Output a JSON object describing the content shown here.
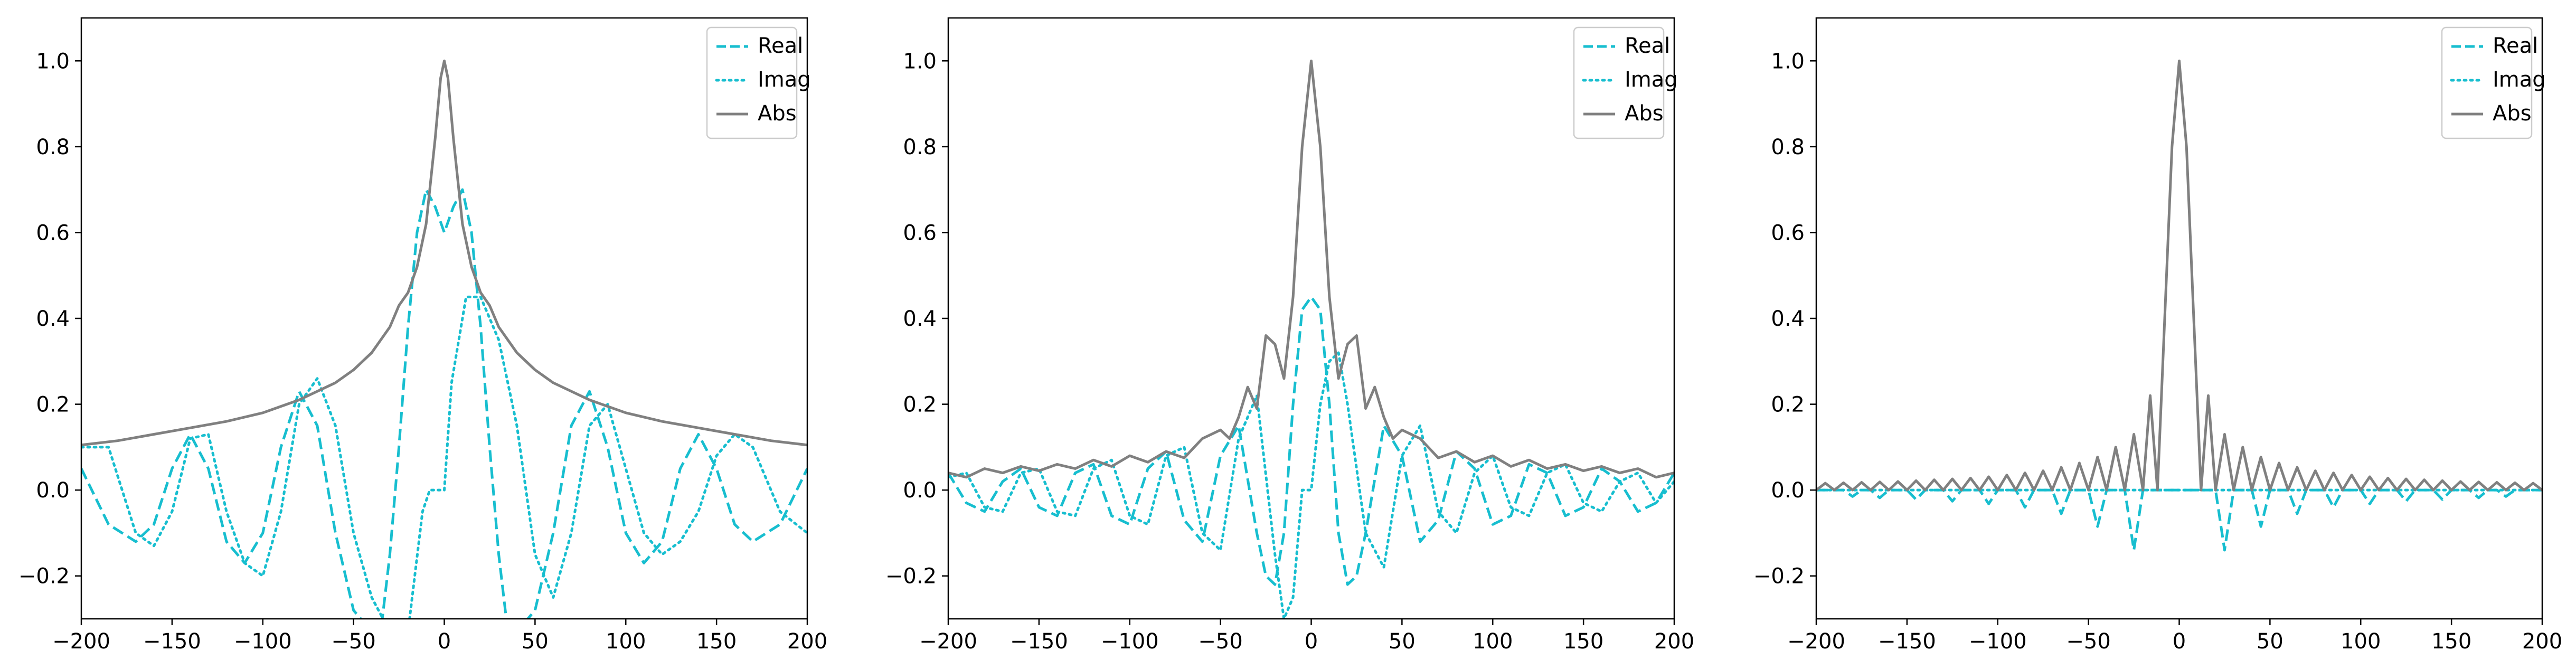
{
  "colors": {
    "real": "#17becf",
    "imag": "#17becf",
    "abs": "#808080",
    "axes": "#000000",
    "legend_border": "#cccccc",
    "background": "#ffffff"
  },
  "chart_data": [
    {
      "type": "line",
      "title": "",
      "xlabel": "",
      "ylabel": "",
      "xlim": [
        -200,
        200
      ],
      "ylim": [
        -0.3,
        1.1
      ],
      "xticks": [
        -200,
        -150,
        -100,
        -50,
        0,
        50,
        100,
        150,
        200
      ],
      "xtick_labels": [
        "−200",
        "−150",
        "−100",
        "−50",
        "0",
        "50",
        "100",
        "150",
        "200"
      ],
      "yticks": [
        -0.2,
        0.0,
        0.2,
        0.4,
        0.6,
        0.8,
        1.0
      ],
      "ytick_labels": [
        "−0.2",
        "0.0",
        "0.2",
        "0.4",
        "0.6",
        "0.8",
        "1.0"
      ],
      "grid": false,
      "legend_position": "top-right",
      "series": [
        {
          "name": "Real",
          "style": "dashed",
          "x": [
            -200,
            -185,
            -170,
            -160,
            -150,
            -140,
            -130,
            -120,
            -110,
            -100,
            -90,
            -80,
            -70,
            -60,
            -50,
            -40,
            -35,
            -30,
            -25,
            -20,
            -15,
            -10,
            -5,
            0,
            5,
            10,
            15,
            20,
            25,
            30,
            35,
            40,
            50,
            60,
            70,
            80,
            90,
            100,
            110,
            120,
            130,
            140,
            150,
            160,
            170,
            185,
            200
          ],
          "y": [
            0.05,
            -0.08,
            -0.12,
            -0.08,
            0.05,
            0.13,
            0.05,
            -0.12,
            -0.17,
            -0.1,
            0.1,
            0.23,
            0.15,
            -0.1,
            -0.28,
            -0.33,
            -0.33,
            -0.15,
            0.1,
            0.38,
            0.6,
            0.7,
            0.66,
            0.6,
            0.66,
            0.7,
            0.6,
            0.38,
            0.1,
            -0.15,
            -0.33,
            -0.33,
            -0.28,
            -0.1,
            0.15,
            0.23,
            0.1,
            -0.1,
            -0.17,
            -0.12,
            0.05,
            0.13,
            0.05,
            -0.08,
            -0.12,
            -0.08,
            0.05
          ]
        },
        {
          "name": "Imag",
          "style": "dotted",
          "x": [
            -200,
            -185,
            -170,
            -160,
            -150,
            -140,
            -130,
            -120,
            -110,
            -100,
            -90,
            -80,
            -70,
            -60,
            -50,
            -40,
            -30,
            -20,
            -12,
            -8,
            -4,
            0,
            4,
            8,
            12,
            20,
            30,
            40,
            50,
            60,
            70,
            80,
            90,
            100,
            110,
            120,
            130,
            140,
            150,
            160,
            170,
            185,
            200
          ],
          "y": [
            0.1,
            0.1,
            -0.1,
            -0.13,
            -0.05,
            0.12,
            0.13,
            -0.05,
            -0.17,
            -0.2,
            -0.05,
            0.2,
            0.26,
            0.15,
            -0.1,
            -0.25,
            -0.33,
            -0.33,
            -0.05,
            0.0,
            0.0,
            0.0,
            0.25,
            0.35,
            0.45,
            0.45,
            0.35,
            0.15,
            -0.15,
            -0.25,
            -0.1,
            0.15,
            0.2,
            0.05,
            -0.1,
            -0.15,
            -0.12,
            -0.05,
            0.08,
            0.13,
            0.1,
            -0.05,
            -0.1
          ]
        },
        {
          "name": "Abs",
          "style": "solid",
          "x": [
            -200,
            -180,
            -160,
            -140,
            -120,
            -100,
            -80,
            -60,
            -50,
            -40,
            -30,
            -25,
            -20,
            -15,
            -10,
            -5,
            -2,
            0,
            2,
            5,
            10,
            15,
            20,
            25,
            30,
            40,
            50,
            60,
            80,
            100,
            120,
            140,
            160,
            180,
            200
          ],
          "y": [
            0.105,
            0.115,
            0.13,
            0.145,
            0.16,
            0.18,
            0.21,
            0.25,
            0.28,
            0.32,
            0.38,
            0.43,
            0.46,
            0.52,
            0.62,
            0.82,
            0.96,
            1.0,
            0.96,
            0.82,
            0.62,
            0.52,
            0.46,
            0.43,
            0.38,
            0.32,
            0.28,
            0.25,
            0.21,
            0.18,
            0.16,
            0.145,
            0.13,
            0.115,
            0.105
          ]
        }
      ]
    },
    {
      "type": "line",
      "title": "",
      "xlabel": "",
      "ylabel": "",
      "xlim": [
        -200,
        200
      ],
      "ylim": [
        -0.3,
        1.1
      ],
      "xticks": [
        -200,
        -150,
        -100,
        -50,
        0,
        50,
        100,
        150,
        200
      ],
      "xtick_labels": [
        "−200",
        "−150",
        "−100",
        "−50",
        "0",
        "50",
        "100",
        "150",
        "200"
      ],
      "yticks": [
        -0.2,
        0.0,
        0.2,
        0.4,
        0.6,
        0.8,
        1.0
      ],
      "ytick_labels": [
        "−0.2",
        "0.0",
        "0.2",
        "0.4",
        "0.6",
        "0.8",
        "1.0"
      ],
      "grid": false,
      "legend_position": "top-right",
      "series": [
        {
          "name": "Real",
          "style": "dashed",
          "x": [
            -200,
            -190,
            -180,
            -170,
            -160,
            -150,
            -140,
            -130,
            -120,
            -110,
            -100,
            -90,
            -80,
            -70,
            -60,
            -50,
            -40,
            -30,
            -25,
            -20,
            -15,
            -10,
            -5,
            0,
            5,
            10,
            15,
            20,
            25,
            30,
            40,
            50,
            60,
            70,
            80,
            90,
            100,
            110,
            120,
            130,
            140,
            150,
            160,
            170,
            180,
            190,
            200
          ],
          "y": [
            0.04,
            -0.03,
            -0.05,
            0.02,
            0.05,
            -0.04,
            -0.06,
            0.04,
            0.06,
            -0.06,
            -0.08,
            0.05,
            0.09,
            -0.07,
            -0.12,
            0.08,
            0.15,
            -0.1,
            -0.2,
            -0.22,
            -0.1,
            0.2,
            0.42,
            0.45,
            0.42,
            0.2,
            -0.1,
            -0.22,
            -0.2,
            -0.1,
            0.15,
            0.08,
            -0.12,
            -0.07,
            0.09,
            0.05,
            -0.08,
            -0.06,
            0.06,
            0.04,
            -0.06,
            -0.04,
            0.05,
            0.02,
            -0.05,
            -0.03,
            0.04
          ]
        },
        {
          "name": "Imag",
          "style": "dotted",
          "x": [
            -200,
            -190,
            -180,
            -170,
            -160,
            -150,
            -140,
            -130,
            -120,
            -110,
            -100,
            -90,
            -80,
            -70,
            -60,
            -50,
            -40,
            -30,
            -20,
            -15,
            -10,
            -5,
            0,
            5,
            10,
            15,
            20,
            30,
            40,
            50,
            60,
            70,
            80,
            90,
            100,
            110,
            120,
            130,
            140,
            150,
            160,
            170,
            180,
            190,
            200
          ],
          "y": [
            0.03,
            0.04,
            -0.04,
            -0.05,
            0.04,
            0.05,
            -0.05,
            -0.06,
            0.05,
            0.07,
            -0.06,
            -0.08,
            0.08,
            0.1,
            -0.1,
            -0.14,
            0.12,
            0.22,
            -0.15,
            -0.3,
            -0.25,
            0.0,
            0.0,
            0.2,
            0.3,
            0.32,
            0.2,
            -0.1,
            -0.18,
            0.08,
            0.15,
            -0.05,
            -0.1,
            0.04,
            0.08,
            -0.04,
            -0.06,
            0.04,
            0.06,
            -0.03,
            -0.05,
            0.02,
            0.04,
            -0.03,
            0.02
          ]
        },
        {
          "name": "Abs",
          "style": "solid",
          "x": [
            -200,
            -190,
            -180,
            -170,
            -160,
            -150,
            -140,
            -130,
            -120,
            -110,
            -100,
            -90,
            -80,
            -70,
            -60,
            -50,
            -45,
            -40,
            -35,
            -30,
            -25,
            -20,
            -15,
            -10,
            -5,
            0,
            5,
            10,
            15,
            20,
            25,
            30,
            35,
            40,
            45,
            50,
            60,
            70,
            80,
            90,
            100,
            110,
            120,
            130,
            140,
            150,
            160,
            170,
            180,
            190,
            200
          ],
          "y": [
            0.04,
            0.03,
            0.05,
            0.04,
            0.055,
            0.045,
            0.06,
            0.05,
            0.07,
            0.055,
            0.08,
            0.065,
            0.09,
            0.075,
            0.12,
            0.14,
            0.12,
            0.17,
            0.24,
            0.19,
            0.36,
            0.34,
            0.26,
            0.45,
            0.8,
            1.0,
            0.8,
            0.45,
            0.26,
            0.34,
            0.36,
            0.19,
            0.24,
            0.17,
            0.12,
            0.14,
            0.12,
            0.075,
            0.09,
            0.065,
            0.08,
            0.055,
            0.07,
            0.05,
            0.06,
            0.045,
            0.055,
            0.04,
            0.05,
            0.03,
            0.04
          ]
        }
      ]
    },
    {
      "type": "line",
      "title": "",
      "xlabel": "",
      "ylabel": "",
      "xlim": [
        -200,
        200
      ],
      "ylim": [
        -0.3,
        1.1
      ],
      "xticks": [
        -200,
        -150,
        -100,
        -50,
        0,
        50,
        100,
        150,
        200
      ],
      "xtick_labels": [
        "−200",
        "−150",
        "−100",
        "−50",
        "0",
        "50",
        "100",
        "150",
        "200"
      ],
      "yticks": [
        -0.2,
        0.0,
        0.2,
        0.4,
        0.6,
        0.8,
        1.0
      ],
      "ytick_labels": [
        "−0.2",
        "0.0",
        "0.2",
        "0.4",
        "0.6",
        "0.8",
        "1.0"
      ],
      "grid": false,
      "legend_position": "top-right",
      "series": [
        {
          "name": "Real",
          "style": "dashed",
          "x": [
            -200,
            -185,
            -180,
            -175,
            -170,
            -165,
            -160,
            -150,
            -145,
            -140,
            -130,
            -125,
            -120,
            -110,
            -105,
            -100,
            -90,
            -85,
            -80,
            -70,
            -65,
            -60,
            -50,
            -45,
            -40,
            -30,
            -25,
            -20,
            -13,
            -7,
            0,
            7,
            13,
            20,
            25,
            30,
            40,
            45,
            50,
            60,
            65,
            70,
            80,
            85,
            90,
            100,
            105,
            110,
            120,
            125,
            130,
            140,
            145,
            150,
            160,
            165,
            170,
            175,
            180,
            185,
            200
          ],
          "y": [
            0.0,
            0.0,
            -0.015,
            0.0,
            0.0,
            -0.018,
            0.0,
            0.0,
            -0.022,
            0.0,
            0.0,
            -0.026,
            0.0,
            0.0,
            -0.032,
            0.0,
            0.0,
            -0.04,
            0.0,
            0.0,
            -0.055,
            0.0,
            0.0,
            -0.085,
            0.0,
            0.0,
            -0.14,
            0.0,
            0.0,
            0.0,
            0.0,
            0.0,
            0.0,
            0.0,
            -0.14,
            0.0,
            0.0,
            -0.085,
            0.0,
            0.0,
            -0.055,
            0.0,
            0.0,
            -0.04,
            0.0,
            0.0,
            -0.032,
            0.0,
            0.0,
            -0.026,
            0.0,
            0.0,
            -0.022,
            0.0,
            0.0,
            -0.018,
            0.0,
            0.0,
            -0.015,
            0.0,
            0.0
          ]
        },
        {
          "name": "Imag",
          "style": "dotted",
          "x": [
            -200,
            200
          ],
          "y": [
            0.0,
            0.0
          ]
        },
        {
          "name": "Abs",
          "style": "solid",
          "x": [
            -200,
            -195,
            -190,
            -185,
            -180,
            -175,
            -170,
            -165,
            -160,
            -155,
            -150,
            -145,
            -140,
            -135,
            -130,
            -125,
            -120,
            -115,
            -110,
            -105,
            -100,
            -95,
            -90,
            -85,
            -80,
            -75,
            -70,
            -65,
            -60,
            -55,
            -50,
            -45,
            -40,
            -35,
            -30,
            -25,
            -20,
            -16,
            -12,
            -8,
            -4,
            0,
            4,
            8,
            12,
            16,
            20,
            25,
            30,
            35,
            40,
            45,
            50,
            55,
            60,
            65,
            70,
            75,
            80,
            85,
            90,
            95,
            100,
            105,
            110,
            115,
            120,
            125,
            130,
            135,
            140,
            145,
            150,
            155,
            160,
            165,
            170,
            175,
            180,
            185,
            190,
            195,
            200
          ],
          "y": [
            0.0,
            0.016,
            0.0,
            0.017,
            0.0,
            0.018,
            0.0,
            0.019,
            0.0,
            0.02,
            0.0,
            0.022,
            0.0,
            0.024,
            0.0,
            0.026,
            0.0,
            0.028,
            0.0,
            0.031,
            0.0,
            0.035,
            0.0,
            0.04,
            0.0,
            0.045,
            0.0,
            0.053,
            0.0,
            0.063,
            0.0,
            0.077,
            0.0,
            0.1,
            0.0,
            0.13,
            0.0,
            0.22,
            0.0,
            0.4,
            0.8,
            1.0,
            0.8,
            0.4,
            0.0,
            0.22,
            0.0,
            0.13,
            0.0,
            0.1,
            0.0,
            0.077,
            0.0,
            0.063,
            0.0,
            0.053,
            0.0,
            0.045,
            0.0,
            0.04,
            0.0,
            0.035,
            0.0,
            0.031,
            0.0,
            0.028,
            0.0,
            0.026,
            0.0,
            0.024,
            0.0,
            0.022,
            0.0,
            0.02,
            0.0,
            0.019,
            0.0,
            0.018,
            0.0,
            0.017,
            0.0,
            0.016,
            0.0
          ]
        }
      ]
    }
  ]
}
